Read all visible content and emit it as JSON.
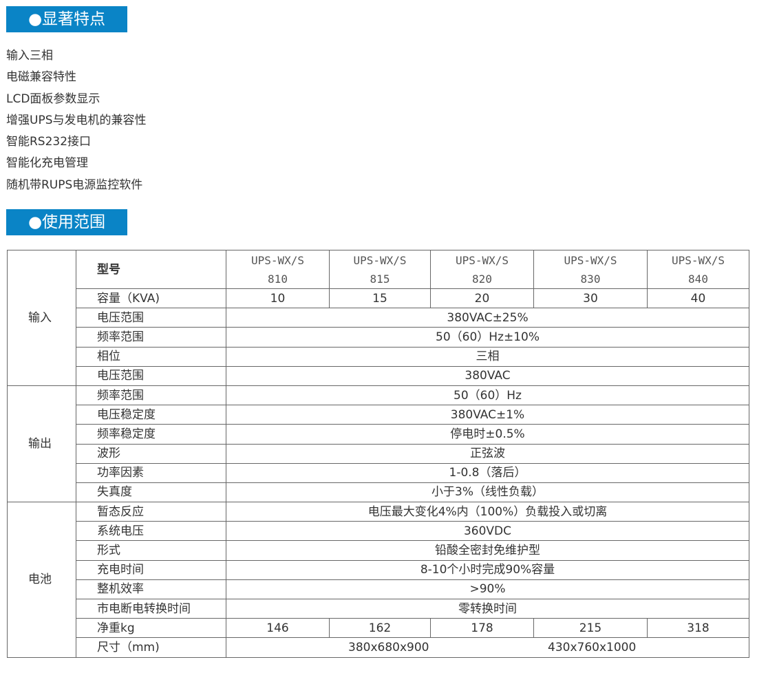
{
  "sections": {
    "features_title": "●显著特点",
    "scope_title": "●使用范围"
  },
  "features": [
    "输入三相",
    "电磁兼容特性",
    "LCD面板参数显示",
    "增强UPS与发电机的兼容性",
    "智能RS232接口",
    "智能化充电管理",
    "随机带RUPS电源监控软件"
  ],
  "colors": {
    "accent": "#0a84c6"
  },
  "table": {
    "model_label": "型号",
    "models": [
      {
        "line1": "UPS-WX/S",
        "line2": "810"
      },
      {
        "line1": "UPS-WX/S",
        "line2": "815"
      },
      {
        "line1": "UPS-WX/S",
        "line2": "820"
      },
      {
        "line1": "UPS-WX/S",
        "line2": "830"
      },
      {
        "line1": "UPS-WX/S",
        "line2": "840"
      }
    ],
    "groups": [
      {
        "name": "输入",
        "rows": [
          {
            "label": "容量（KVA)",
            "values": [
              "10",
              "15",
              "20",
              "30",
              "40"
            ]
          },
          {
            "label": "电压范围",
            "value": "380VAC±25%"
          },
          {
            "label": "频率范围",
            "value": "50（60）Hz±10%"
          },
          {
            "label": "相位",
            "value": "三相"
          },
          {
            "label": "电压范围",
            "value": "380VAC"
          }
        ]
      },
      {
        "name": "输出",
        "rows": [
          {
            "label": "频率范围",
            "value": "50（60）Hz"
          },
          {
            "label": "电压稳定度",
            "value": "380VAC±1%"
          },
          {
            "label": "频率稳定度",
            "value": "停电时±0.5%"
          },
          {
            "label": "波形",
            "value": "正弦波"
          },
          {
            "label": "功率因素",
            "value": "1-0.8（落后）"
          },
          {
            "label": "失真度",
            "value": "小于3%（线性负载）"
          }
        ]
      },
      {
        "name": "电池",
        "rows": [
          {
            "label": "暂态反应",
            "value": "电压最大变化4%内（100%）负载投入或切离"
          },
          {
            "label": "系统电压",
            "value": "360VDC"
          },
          {
            "label": "形式",
            "value": "铅酸全密封免维护型"
          },
          {
            "label": "充电时间",
            "value": "8-10个小时完成90%容量"
          },
          {
            "label": "整机效率",
            "value": ">90%"
          },
          {
            "label": "市电断电转换时间",
            "value": "零转换时间"
          },
          {
            "label": "净重kg",
            "values": [
              "146",
              "162",
              "178",
              "215",
              "318"
            ]
          },
          {
            "label": "尺寸（mm)",
            "split": [
              "380x680x900",
              "430x760x1000"
            ]
          }
        ]
      }
    ]
  }
}
